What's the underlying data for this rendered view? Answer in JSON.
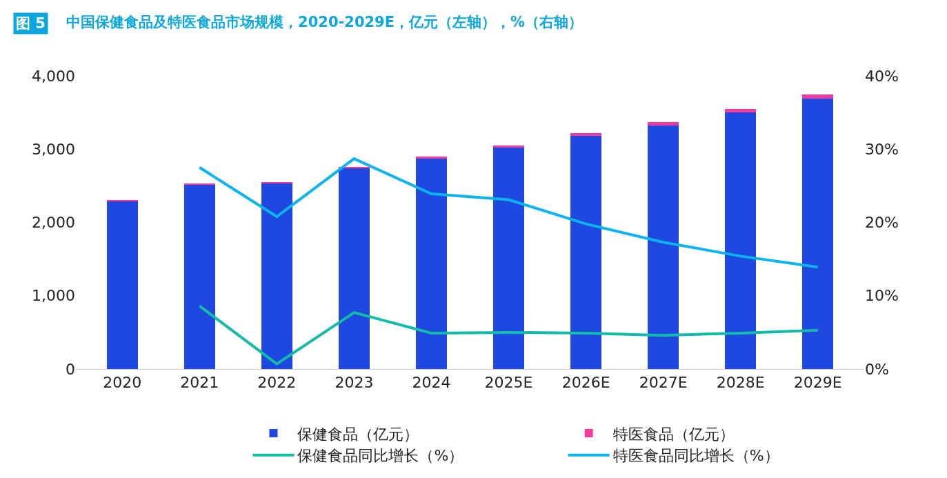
{
  "chart_data": {
    "type": "bar",
    "title": "中国保健食品及特医食品市场规模，2020-2029E，亿元（左轴），%（右轴）",
    "annotations": [
      "图 5"
    ],
    "categories": [
      "2020",
      "2021",
      "2022",
      "2023",
      "2024",
      "2025E",
      "2026E",
      "2027E",
      "2028E",
      "2029E"
    ],
    "stacked": true,
    "series": [
      {
        "name": "保健食品（亿元）",
        "color": "#1f48e0",
        "values": [
          2290,
          2510,
          2530,
          2740,
          2870,
          3020,
          3180,
          3320,
          3500,
          3690
        ]
      },
      {
        "name": "特医食品（亿元）",
        "color": "#f23c9c",
        "values": [
          10,
          20,
          20,
          20,
          30,
          30,
          40,
          50,
          50,
          60
        ]
      },
      {
        "name": "保健食品同比增长（%）",
        "type": "line",
        "axis": "y2",
        "color": "#14bba8",
        "values": [
          null,
          8.6,
          0.7,
          7.7,
          4.9,
          5.0,
          4.9,
          4.6,
          4.9,
          5.3
        ]
      },
      {
        "name": "特医食品同比增长（%）",
        "type": "line",
        "axis": "y2",
        "color": "#0bb4f0",
        "values": [
          null,
          27.5,
          20.8,
          28.7,
          23.9,
          23.1,
          19.8,
          17.3,
          15.4,
          13.9
        ]
      }
    ],
    "ylim": [
      0,
      4000
    ],
    "yticks": [
      {
        "value": 0,
        "label": "0"
      },
      {
        "value": 1000,
        "label": "1,000"
      },
      {
        "value": 2000,
        "label": "2,000"
      },
      {
        "value": 3000,
        "label": "3,000"
      },
      {
        "value": 4000,
        "label": "4,000"
      }
    ],
    "y2lim": [
      0,
      40
    ],
    "y2ticks": [
      {
        "value": 0,
        "label": "0%"
      },
      {
        "value": 10,
        "label": "10%"
      },
      {
        "value": 20,
        "label": "20%"
      },
      {
        "value": 30,
        "label": "30%"
      },
      {
        "value": 40,
        "label": "40%"
      }
    ],
    "legend": "bottom",
    "marker": "none",
    "line_style": "solid"
  }
}
